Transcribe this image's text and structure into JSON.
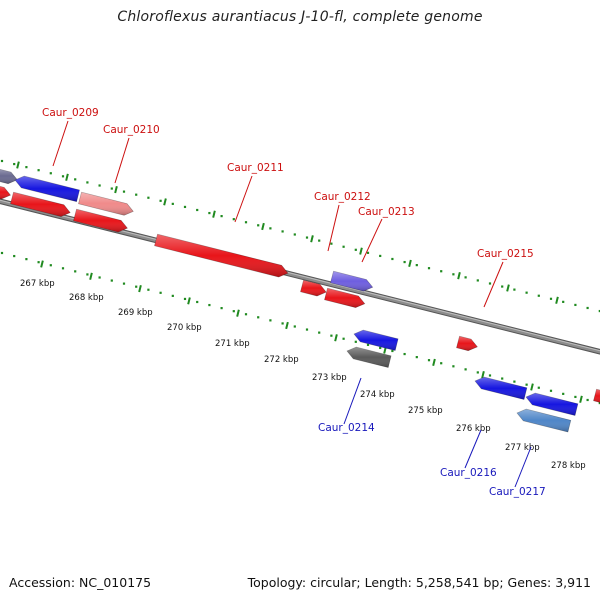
{
  "title": "Chloroflexus aurantiacus J-10-fl, complete genome",
  "footer": {
    "accession": "Accession: NC_010175",
    "summary": "Topology: circular; Length: 5,258,541 bp; Genes: 3,911"
  },
  "colors": {
    "forward": "#e8151a",
    "reverse": "#1616e0",
    "pink": "#f08a8a",
    "lavender": "#6e5ee0",
    "slate": "#6a6a90",
    "steel": "#4f86c8",
    "gray": "#5a5a5a",
    "backbone": "#8c8c8c",
    "tick": "#208a20",
    "label_forward": "#cc1010",
    "label_reverse": "#1818bb"
  },
  "tick_labels": [
    "267 kbp",
    "268 kbp",
    "269 kbp",
    "270 kbp",
    "271 kbp",
    "272 kbp",
    "273 kbp",
    "274 kbp",
    "275 kbp",
    "276 kbp",
    "277 kbp",
    "278 kbp"
  ],
  "gene_labels": [
    {
      "id": "caur0209",
      "text": "Caur_0209",
      "strand": "forward"
    },
    {
      "id": "caur0210",
      "text": "Caur_0210",
      "strand": "forward"
    },
    {
      "id": "caur0211",
      "text": "Caur_0211",
      "strand": "forward"
    },
    {
      "id": "caur0212",
      "text": "Caur_0212",
      "strand": "forward"
    },
    {
      "id": "caur0213",
      "text": "Caur_0213",
      "strand": "forward"
    },
    {
      "id": "caur0215",
      "text": "Caur_0215",
      "strand": "forward"
    },
    {
      "id": "caur0214",
      "text": "Caur_0214",
      "strand": "reverse"
    },
    {
      "id": "caur0216",
      "text": "Caur_0216",
      "strand": "reverse"
    },
    {
      "id": "caur0217",
      "text": "Caur_0217",
      "strand": "reverse"
    }
  ]
}
